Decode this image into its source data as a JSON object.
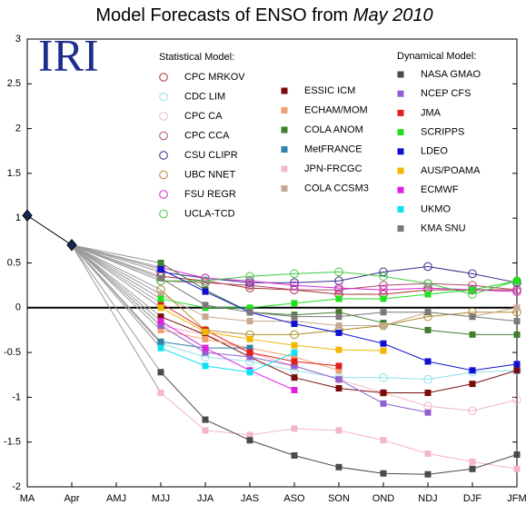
{
  "chart_data": {
    "type": "line",
    "title": "Model Forecasts of ENSO from",
    "title_date": "May 2010",
    "logo": "IRI",
    "legend_titles": [
      "Statistical Model:",
      "Dynamical Model:"
    ],
    "categories": [
      "MA",
      "Apr",
      "AMJ",
      "MJJ",
      "JJA",
      "JAS",
      "ASO",
      "SON",
      "OND",
      "NDJ",
      "DJF",
      "JFM"
    ],
    "ylim": [
      -2,
      3
    ],
    "yticks": [
      -2,
      -1.5,
      -1,
      -0.5,
      0,
      0.5,
      1,
      1.5,
      2,
      2.5,
      3
    ],
    "zero_line": true,
    "observed": {
      "color": "#14285a",
      "values": [
        1.03,
        0.7,
        null,
        null,
        null,
        null,
        null,
        null,
        null,
        null,
        null,
        null
      ]
    },
    "series": [
      {
        "name": "CPC MRKOV",
        "marker": "circle",
        "color": "#a83232",
        "values": [
          null,
          null,
          null,
          0.35,
          0.3,
          0.22,
          0.2,
          0.15,
          0.15,
          0.2,
          0.2,
          0.2
        ]
      },
      {
        "name": "CDC LIM",
        "marker": "circle",
        "color": "#8fe0ea",
        "values": [
          null,
          null,
          null,
          -0.4,
          -0.55,
          -0.6,
          -0.7,
          -0.78,
          -0.78,
          -0.8,
          -0.72,
          -0.7
        ]
      },
      {
        "name": "CPC CA",
        "marker": "circle",
        "color": "#f2b8c4",
        "values": [
          null,
          null,
          null,
          -0.2,
          -0.3,
          -0.5,
          -0.65,
          -0.8,
          -0.95,
          -1.1,
          -1.15,
          -1.03
        ]
      },
      {
        "name": "CPC CCA",
        "marker": "circle",
        "color": "#b04870",
        "values": [
          null,
          null,
          null,
          0.3,
          0.28,
          0.25,
          0.2,
          0.2,
          0.25,
          0.27,
          0.25,
          0.2
        ]
      },
      {
        "name": "CSU CLIPR",
        "marker": "circle",
        "color": "#3a2a8a",
        "values": [
          null,
          null,
          null,
          0.4,
          0.33,
          0.28,
          0.28,
          0.3,
          0.4,
          0.46,
          0.38,
          0.28
        ]
      },
      {
        "name": "UBC NNET",
        "marker": "circle",
        "color": "#b08a2a",
        "values": [
          null,
          null,
          null,
          0.2,
          -0.25,
          -0.3,
          -0.3,
          -0.25,
          -0.2,
          -0.1,
          -0.05,
          -0.05
        ]
      },
      {
        "name": "FSU REGR",
        "marker": "circle",
        "color": "#d62ad0",
        "values": [
          null,
          null,
          null,
          0.45,
          0.33,
          0.3,
          0.25,
          0.22,
          0.2,
          0.22,
          0.2,
          0.18
        ]
      },
      {
        "name": "UCLA-TCD",
        "marker": "circle",
        "color": "#40c840",
        "values": [
          null,
          null,
          null,
          0.3,
          0.3,
          0.35,
          0.38,
          0.4,
          0.35,
          0.27,
          0.15,
          0.3
        ]
      },
      {
        "name": "ESSIC ICM",
        "marker": "square",
        "color": "#7a0a0a",
        "values": [
          null,
          null,
          null,
          -0.1,
          -0.3,
          -0.55,
          -0.78,
          -0.9,
          -0.95,
          -0.95,
          -0.85,
          -0.7
        ]
      },
      {
        "name": "ECHAM/MOM",
        "marker": "square",
        "color": "#f0a070",
        "values": [
          null,
          null,
          null,
          -0.25,
          -0.35,
          -0.45,
          -0.55,
          -0.7,
          null,
          null,
          null,
          null
        ]
      },
      {
        "name": "COLA ANOM",
        "marker": "square",
        "color": "#3f7f2f",
        "values": [
          null,
          null,
          null,
          0.5,
          0.2,
          -0.05,
          -0.08,
          -0.05,
          -0.17,
          -0.25,
          -0.3,
          -0.3
        ]
      },
      {
        "name": "MetFRANCE",
        "marker": "square",
        "color": "#2f82a8",
        "values": [
          null,
          null,
          null,
          -0.38,
          -0.45,
          -0.45,
          null,
          null,
          null,
          null,
          null,
          null
        ]
      },
      {
        "name": "JPN-FRCGC",
        "marker": "square",
        "color": "#f4b6cc",
        "values": [
          null,
          null,
          null,
          -0.95,
          -1.37,
          -1.42,
          -1.35,
          -1.37,
          -1.48,
          -1.63,
          -1.72,
          -1.8
        ]
      },
      {
        "name": "COLA CCSM3",
        "marker": "square",
        "color": "#c8a890",
        "values": [
          null,
          null,
          null,
          0.15,
          -0.1,
          -0.15,
          -0.15,
          -0.2,
          -0.2,
          -0.05,
          -0.1,
          0
        ]
      },
      {
        "name": "NASA GMAO",
        "marker": "square",
        "color": "#4a4a4a",
        "values": [
          null,
          null,
          null,
          -0.72,
          -1.25,
          -1.48,
          -1.65,
          -1.78,
          -1.85,
          -1.86,
          -1.8,
          -1.64
        ]
      },
      {
        "name": "NCEP CFS",
        "marker": "square",
        "color": "#9060d0",
        "values": [
          null,
          null,
          null,
          -0.2,
          -0.5,
          -0.55,
          -0.65,
          -0.8,
          -1.07,
          -1.17,
          null,
          null
        ]
      },
      {
        "name": "JMA",
        "marker": "square",
        "color": "#e02020",
        "values": [
          null,
          null,
          null,
          0.05,
          -0.25,
          -0.5,
          -0.6,
          -0.65,
          null,
          null,
          null,
          null
        ]
      },
      {
        "name": "SCRIPPS",
        "marker": "square",
        "color": "#20e020",
        "values": [
          null,
          null,
          null,
          0.1,
          0,
          0,
          0.05,
          0.1,
          0.1,
          0.15,
          0.2,
          0.3
        ]
      },
      {
        "name": "LDEO",
        "marker": "square",
        "color": "#1010d0",
        "values": [
          null,
          null,
          null,
          0.43,
          0.18,
          -0.05,
          -0.18,
          -0.28,
          -0.4,
          -0.6,
          -0.7,
          -0.63
        ]
      },
      {
        "name": "AUS/POAMA",
        "marker": "square",
        "color": "#f0b800",
        "values": [
          null,
          null,
          null,
          0,
          -0.27,
          -0.35,
          -0.42,
          -0.47,
          -0.48,
          null,
          null,
          null
        ]
      },
      {
        "name": "ECMWF",
        "marker": "square",
        "color": "#e020e0",
        "values": [
          null,
          null,
          null,
          -0.15,
          -0.45,
          -0.7,
          -0.92,
          null,
          null,
          null,
          null,
          null
        ]
      },
      {
        "name": "UKMO",
        "marker": "square",
        "color": "#10e0f0",
        "values": [
          null,
          null,
          null,
          -0.45,
          -0.65,
          -0.72,
          -0.5,
          null,
          null,
          null,
          null,
          null
        ]
      },
      {
        "name": "KMA SNU",
        "marker": "square",
        "color": "#7a7a7a",
        "values": [
          null,
          null,
          null,
          0.33,
          0.03,
          -0.05,
          -0.1,
          -0.1,
          -0.05,
          -0.05,
          -0.1,
          -0.15
        ]
      }
    ]
  }
}
